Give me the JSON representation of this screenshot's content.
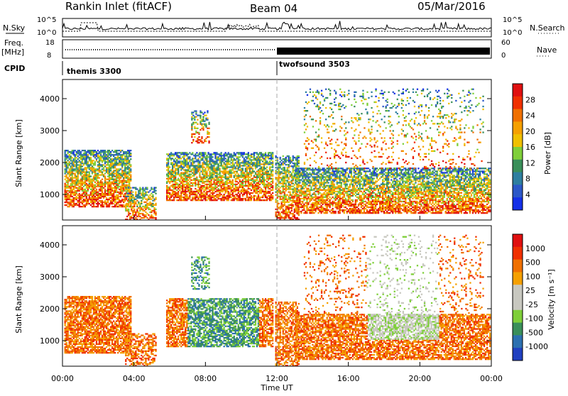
{
  "header": {
    "station": "Rankin Inlet (fitACF)",
    "beam": "Beam 04",
    "date": "05/Mar/2016"
  },
  "top_panels": {
    "nsky_label": "N.Sky",
    "nsearch_label": "N.Search",
    "freq_label": "Freq.",
    "freq_unit": "[MHz]",
    "nave_label": "Nave",
    "cpid_label": "CPID",
    "noise_ticks_left": [
      "10^5",
      "10^0"
    ],
    "noise_ticks_right": [
      "10^5",
      "10^0"
    ],
    "freq_ticks": [
      "18",
      "8"
    ],
    "nave_ticks": [
      "60",
      "0"
    ],
    "cpid_segments": [
      {
        "name": "themis 3300",
        "start_hour": 0,
        "end_hour": 12
      },
      {
        "name": "twofsound 3503",
        "start_hour": 12,
        "end_hour": 24
      }
    ]
  },
  "colors": {
    "power_scale": [
      "#1530e8",
      "#2c58c8",
      "#2e7fa0",
      "#3a8f5a",
      "#7fcf3a",
      "#f0c000",
      "#f5a000",
      "#f07000",
      "#f03000",
      "#e01010"
    ],
    "velocity_scale": [
      "#2040c0",
      "#2c70b0",
      "#3a8f5a",
      "#7fcf3a",
      "#c8c8c0",
      "#c8c8c0",
      "#f5a000",
      "#f07000",
      "#f03000",
      "#e01010"
    ]
  },
  "chart_data": [
    {
      "type": "heatmap",
      "title": "",
      "xlabel": "",
      "ylabel": "Slant Range [km]",
      "x_ticks": [
        "00:00",
        "04:00",
        "08:00",
        "12:00",
        "16:00",
        "20:00",
        "00:00"
      ],
      "y_ticks": [
        1000,
        2000,
        3000,
        4000
      ],
      "xlim_hours": [
        0,
        24
      ],
      "ylim_km": [
        200,
        4600
      ],
      "colorbar": {
        "label": "Power [dB]",
        "ticks": [
          4,
          8,
          12,
          16,
          20,
          24,
          28
        ]
      }
    },
    {
      "type": "heatmap",
      "title": "",
      "xlabel": "Time UT",
      "ylabel": "Slant Range [km]",
      "x_ticks": [
        "00:00",
        "04:00",
        "08:00",
        "12:00",
        "16:00",
        "20:00",
        "00:00"
      ],
      "y_ticks": [
        1000,
        2000,
        3000,
        4000
      ],
      "xlim_hours": [
        0,
        24
      ],
      "ylim_km": [
        200,
        4600
      ],
      "colorbar": {
        "label": "Velocity [m s⁻¹]",
        "ticks": [
          1000,
          500,
          100,
          25,
          -25,
          -100,
          -500,
          -1000
        ]
      }
    }
  ]
}
